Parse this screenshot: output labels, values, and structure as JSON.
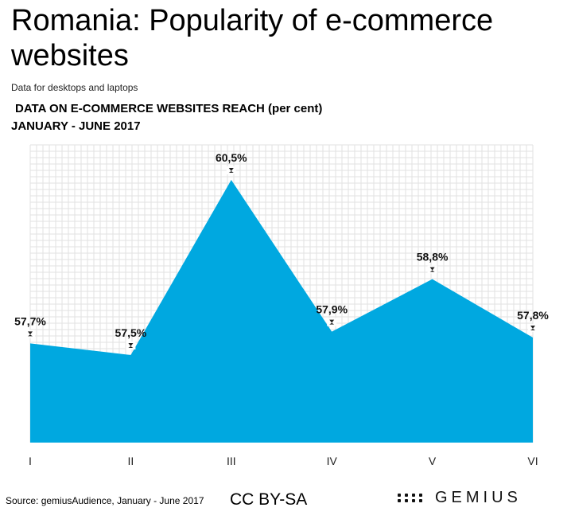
{
  "header": {
    "title": "Romania: Popularity of e-commerce websites",
    "subtitle": "Data for desktops and laptops"
  },
  "footer": {
    "source": "Source: gemiusAudience, January - June 2017",
    "license": "CC BY-SA",
    "brand": "GEMIUS"
  },
  "chart_data": {
    "type": "area",
    "title": "DATA ON E-COMMERCE WEBSITES REACH (per cent)",
    "subtitle": "JANUARY - JUNE 2017",
    "categories": [
      "I",
      "II",
      "III",
      "IV",
      "V",
      "VI"
    ],
    "values": [
      57.7,
      57.5,
      60.5,
      57.9,
      58.8,
      57.8
    ],
    "labels": [
      "57,7%",
      "57,5%",
      "60,5%",
      "57,9%",
      "58,8%",
      "57,8%"
    ],
    "ylim": [
      56,
      61.1
    ],
    "grid": true,
    "color": "#00a8e0"
  }
}
